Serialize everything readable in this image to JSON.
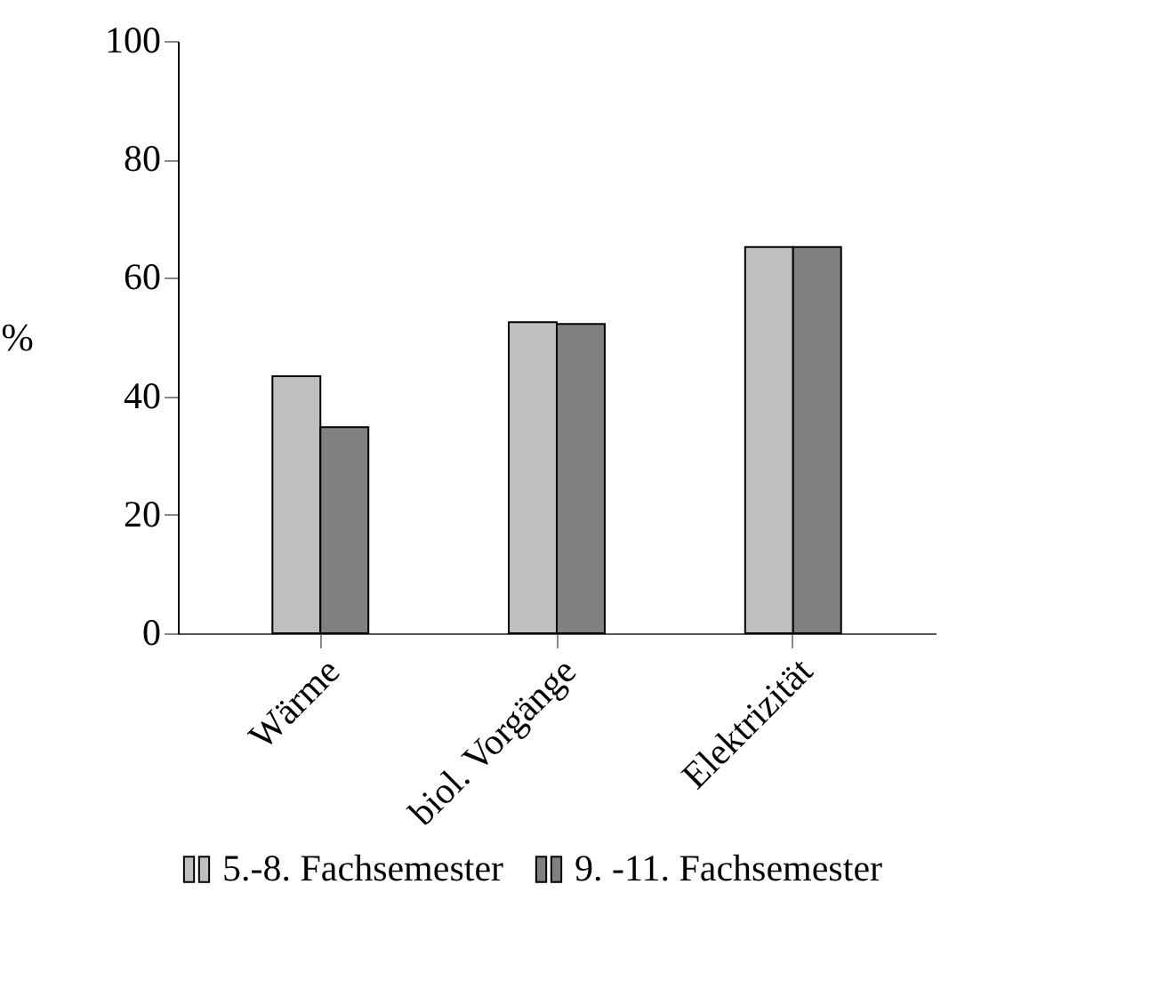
{
  "chart_data": {
    "type": "bar",
    "ylabel": "%",
    "categories": [
      "Wärme",
      "biol. Vorgänge",
      "Elektrizität"
    ],
    "series": [
      {
        "name": "5.-8. Fachsemester",
        "color": "#bfbfbf",
        "values": [
          43.4,
          52.5,
          65.2
        ]
      },
      {
        "name": "9. -11. Fachsemester",
        "color": "#808080",
        "values": [
          34.8,
          52.2,
          65.2
        ]
      }
    ],
    "ylim": [
      0,
      100
    ],
    "yticks": [
      0,
      20,
      40,
      60,
      80,
      100
    ],
    "grid": false,
    "legend": "bottom"
  }
}
